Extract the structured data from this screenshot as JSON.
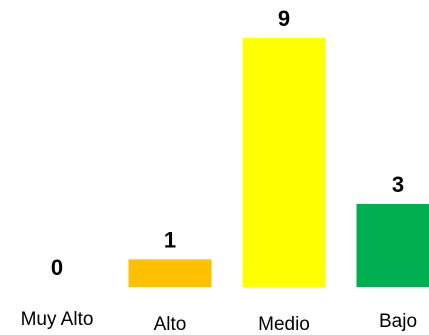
{
  "chart_data": {
    "type": "bar",
    "categories": [
      "Muy Alto",
      "Alto",
      "Medio",
      "Bajo"
    ],
    "values": [
      0,
      1,
      9,
      3
    ],
    "colors": [
      "#c00000",
      "#ffc000",
      "#ffff00",
      "#00b050"
    ],
    "title": "",
    "xlabel": "",
    "ylabel": "",
    "ylim": [
      0,
      9
    ],
    "grid": false,
    "legend": "none",
    "data_labels": true
  }
}
